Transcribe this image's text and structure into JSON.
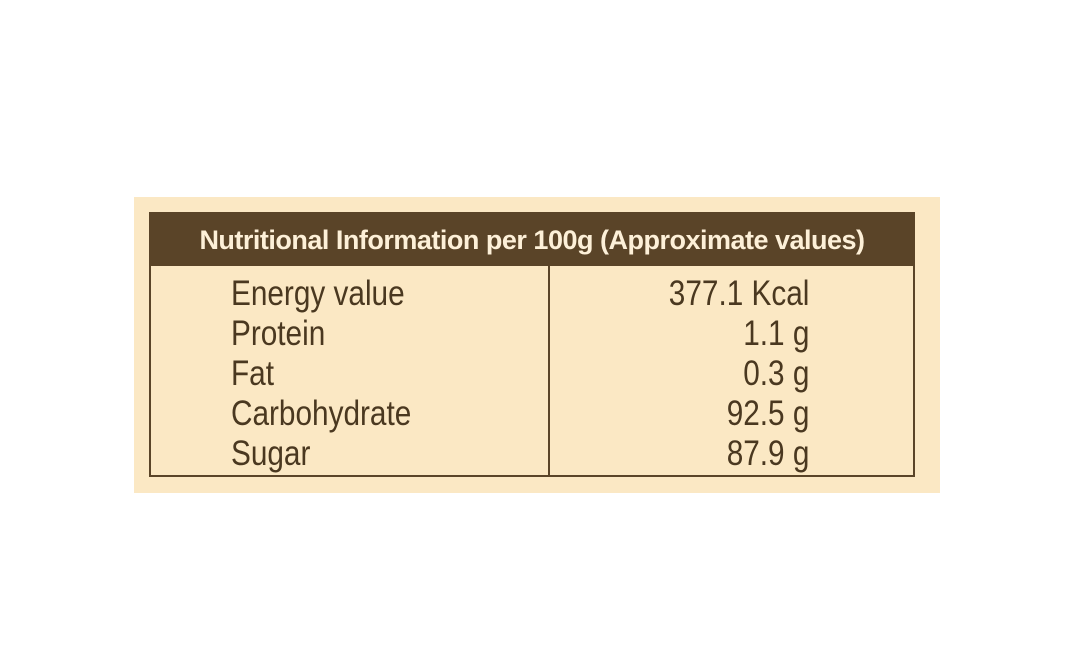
{
  "table": {
    "title": "Nutritional Information per 100g (Approximate values)",
    "rows": [
      [
        "Energy value",
        "377.1 Kcal"
      ],
      [
        "Protein",
        "1.1 g"
      ],
      [
        "Fat",
        "0.3 g"
      ],
      [
        "Carbohydrate",
        "92.5 g"
      ],
      [
        "Sugar",
        "87.9 g"
      ]
    ]
  }
}
